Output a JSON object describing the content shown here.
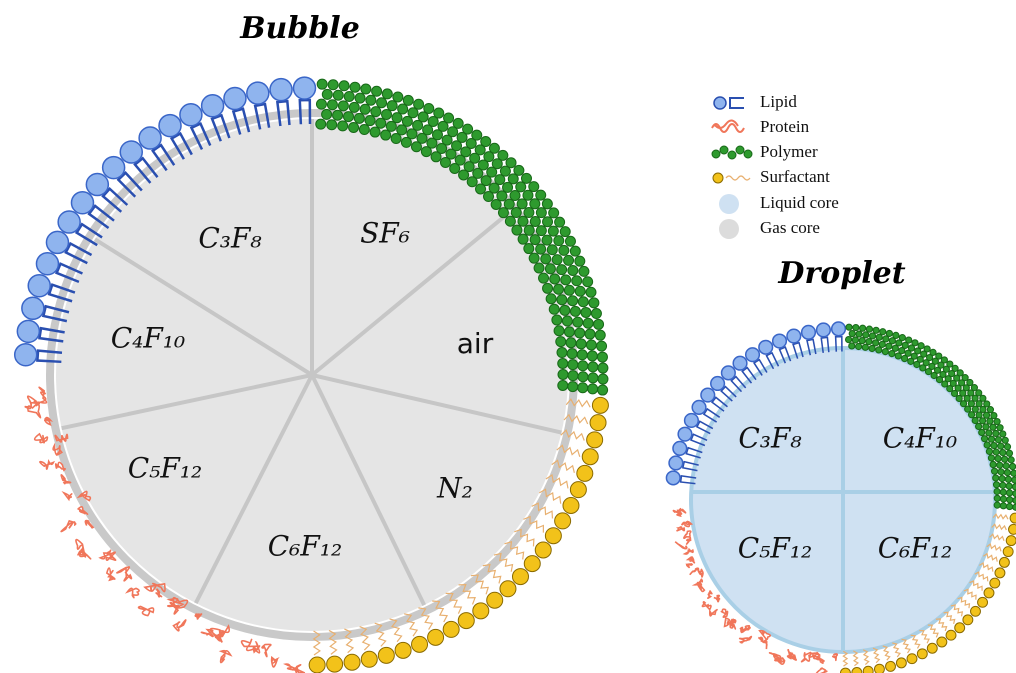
{
  "bubble": {
    "title": "Bubble",
    "sectors": [
      "C₃F₈",
      "SF₆",
      "C₄F₁₀",
      "air",
      "C₅F₁₂",
      "N₂",
      "C₆F₁₂"
    ]
  },
  "droplet": {
    "title": "Droplet",
    "sectors": [
      "C₃F₈",
      "C₄F₁₀",
      "C₅F₁₂",
      "C₆F₁₂"
    ]
  },
  "legend": [
    "Lipid",
    "Protein",
    "Polymer",
    "Surfactant",
    "Liquid core",
    "Gas core"
  ]
}
